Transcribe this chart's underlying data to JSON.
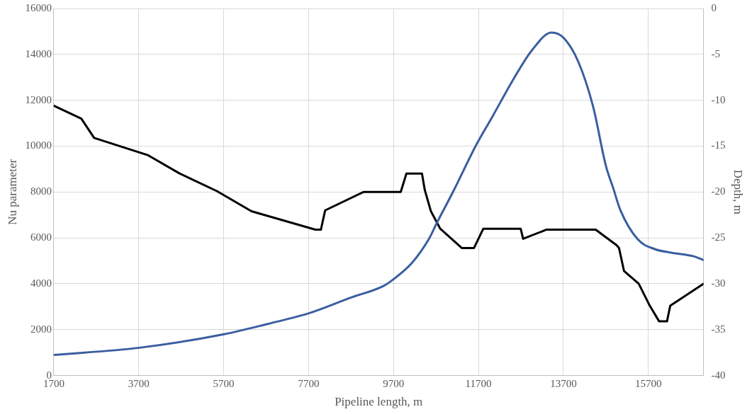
{
  "chart_data": {
    "type": "line",
    "xlabel": "Pipeline length, m",
    "ylabel": "Nu parameter",
    "y2label": "Depth, m",
    "xlim": [
      1700,
      17000
    ],
    "xticks": [
      1700,
      3700,
      5700,
      7700,
      9700,
      11700,
      13700,
      15700
    ],
    "ylim": [
      0,
      16000
    ],
    "yticks": [
      0,
      2000,
      4000,
      6000,
      8000,
      10000,
      12000,
      14000,
      16000
    ],
    "y2lim": [
      -40,
      0
    ],
    "y2ticks": [
      -40,
      -35,
      -30,
      -25,
      -20,
      -15,
      -10,
      -5,
      0
    ],
    "grid": true,
    "marker": "none",
    "line_style": "solid",
    "series": [
      {
        "color": "#3a5ea0",
        "x": [
          1710,
          3715,
          5710,
          6740,
          7720,
          8700,
          9470,
          9715,
          10130,
          10530,
          10730,
          11100,
          11650,
          12030,
          12550,
          12960,
          13420,
          13710,
          14060,
          14400,
          14700,
          14870,
          15040,
          15450,
          15850,
          16260,
          16780,
          17000
        ],
        "values": [
          900,
          1210,
          1800,
          2250,
          2720,
          3400,
          3910,
          4220,
          4900,
          5940,
          6690,
          8000,
          10060,
          11290,
          13000,
          14180,
          14950,
          14710,
          13640,
          11720,
          9150,
          8190,
          7220,
          5940,
          5510,
          5350,
          5190,
          5030
        ]
      },
      {
        "color": "#000000",
        "axis": "y2",
        "x": [
          1700,
          2348,
          2650,
          3923,
          4670,
          5540,
          6355,
          7860,
          7990,
          8090,
          8990,
          9870,
          10003,
          10370,
          10437,
          10580,
          10800,
          11306,
          11595,
          11815,
          12694,
          12752,
          13303,
          14460,
          14953,
          15010,
          15127,
          15474,
          15735,
          15955,
          16140,
          16216,
          17000
        ],
        "values": [
          -10.6,
          -12,
          -14.1,
          -16,
          -18,
          -19.9,
          -22.1,
          -24.1,
          -24.1,
          -22,
          -20,
          -20,
          -18,
          -18,
          -19.8,
          -22.1,
          -24,
          -26.1,
          -26.1,
          -24,
          -24,
          -25.1,
          -24.1,
          -24.1,
          -25.8,
          -26.1,
          -28.6,
          -30,
          -32.4,
          -34.1,
          -34.1,
          -32.4,
          -30
        ]
      }
    ]
  }
}
